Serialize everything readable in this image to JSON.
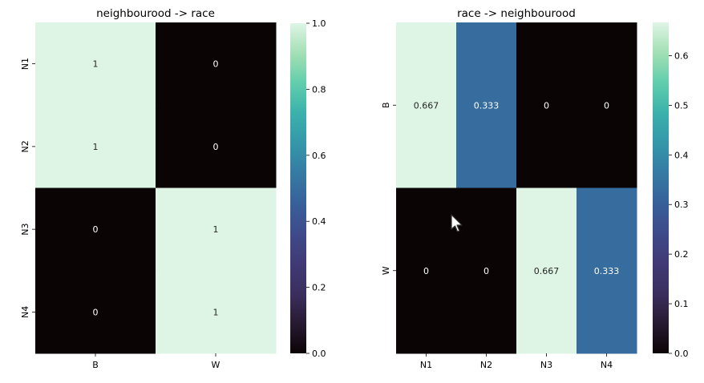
{
  "chart_data": [
    {
      "type": "heatmap",
      "title": "neighbourood ->  race",
      "x_categories": [
        "B",
        "W"
      ],
      "y_categories": [
        "N1",
        "N2",
        "N3",
        "N4"
      ],
      "values": [
        [
          1,
          0
        ],
        [
          1,
          0
        ],
        [
          0,
          1
        ],
        [
          0,
          1
        ]
      ],
      "annotations": [
        [
          "1",
          "0"
        ],
        [
          "1",
          "0"
        ],
        [
          "0",
          "1"
        ],
        [
          "0",
          "1"
        ]
      ],
      "colormap": "mako",
      "vmin": 0,
      "vmax": 1,
      "colorbar_ticks": [
        "0.0",
        "0.2",
        "0.4",
        "0.6",
        "0.8",
        "1.0"
      ],
      "colorbar_values": [
        0,
        0.2,
        0.4,
        0.6,
        0.8,
        1.0
      ]
    },
    {
      "type": "heatmap",
      "title": "race -> neighbourood",
      "x_categories": [
        "N1",
        "N2",
        "N3",
        "N4"
      ],
      "y_categories": [
        "B",
        "W"
      ],
      "values": [
        [
          0.667,
          0.333,
          0,
          0
        ],
        [
          0,
          0,
          0.667,
          0.333
        ]
      ],
      "annotations": [
        [
          "0.667",
          "0.333",
          "0",
          "0"
        ],
        [
          "0",
          "0",
          "0.667",
          "0.333"
        ]
      ],
      "colormap": "mako",
      "vmin": 0,
      "vmax": 0.667,
      "colorbar_ticks": [
        "0.0",
        "0.1",
        "0.2",
        "0.3",
        "0.4",
        "0.5",
        "0.6"
      ],
      "colorbar_values": [
        0,
        0.1,
        0.2,
        0.3,
        0.4,
        0.5,
        0.6
      ]
    }
  ],
  "colors": {
    "mako": [
      "#0b0405",
      "#271a32",
      "#3b2f5e",
      "#403a75",
      "#3e4b8a",
      "#38609a",
      "#357ba3",
      "#3497a9",
      "#3bb1ac",
      "#60ceac",
      "#a4dfb4",
      "#def5e5"
    ]
  },
  "cursor": {
    "icon": "mouse-pointer-icon"
  }
}
